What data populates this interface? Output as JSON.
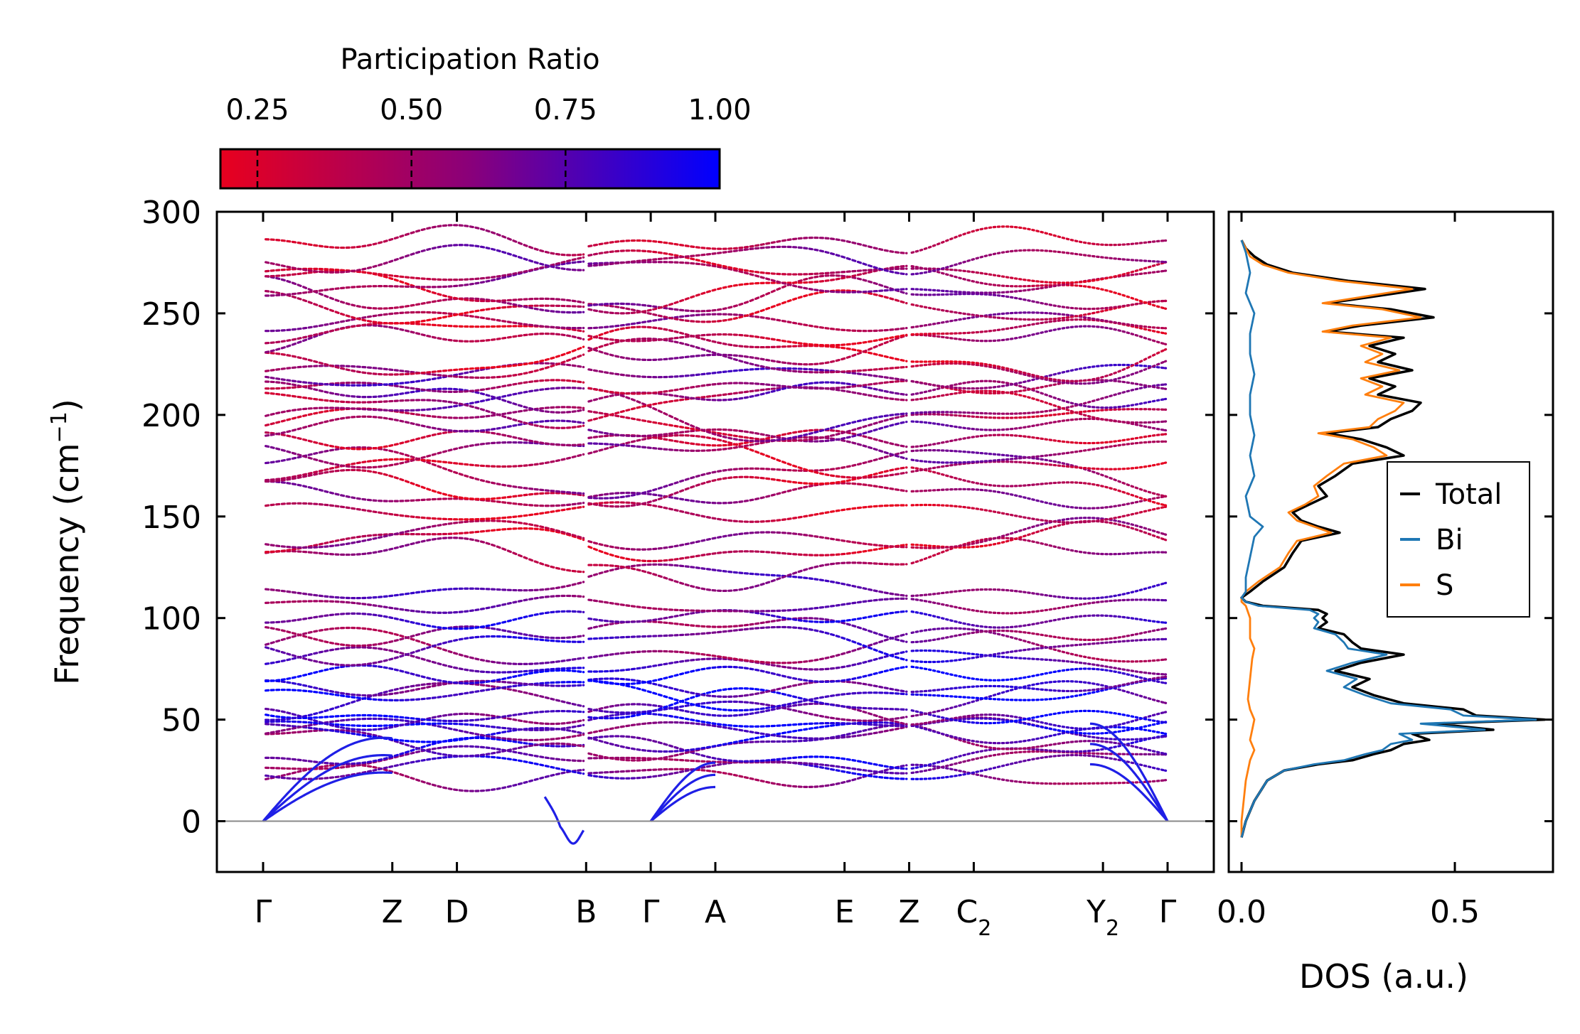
{
  "chart_data": [
    {
      "type": "line",
      "name": "phonon-band-structure",
      "ylabel": "Frequency (cm",
      "ylabel_sup": "−1",
      "ylabel_close": ")",
      "ylim": [
        -25,
        300
      ],
      "yticks": [
        0,
        50,
        100,
        150,
        200,
        250,
        300
      ],
      "zero_line": 0,
      "kpath_positions": [
        0,
        1,
        1.5,
        2.5,
        3.0,
        3.5,
        4.5,
        5.0,
        5.5,
        6.5,
        7.0
      ],
      "kpath_breaks": [
        2.5,
        5.0
      ],
      "kpath_labels": [
        {
          "label": "Γ",
          "sub": ""
        },
        {
          "label": "Z",
          "sub": ""
        },
        {
          "label": "D",
          "sub": ""
        },
        {
          "label": "B",
          "sub": ""
        },
        {
          "label": "Γ",
          "sub": ""
        },
        {
          "label": "A",
          "sub": ""
        },
        {
          "label": "E",
          "sub": ""
        },
        {
          "label": "Z",
          "sub": ""
        },
        {
          "label": "C",
          "sub": "2"
        },
        {
          "label": "Y",
          "sub": "2"
        },
        {
          "label": "Γ",
          "sub": ""
        }
      ],
      "colorbar": {
        "title": "Participation Ratio",
        "range": [
          0.19,
          1.0
        ],
        "ticks": [
          0.25,
          0.5,
          0.75,
          1.0
        ],
        "tick_labels": [
          "0.25",
          "0.50",
          "0.75",
          "1.00"
        ],
        "color_low": "#e8001e",
        "color_mid": "#8a007a",
        "color_high": "#0000ff"
      },
      "acoustic_color": "#1f1fe6",
      "acoustic_branches": [
        {
          "gamma1": 0,
          "mid": 48,
          "z": 56
        },
        {
          "gamma1": 0,
          "mid": 38,
          "z": 46
        },
        {
          "gamma1": 0,
          "mid": 28,
          "z": 40
        }
      ],
      "imaginary_dip": {
        "center_k": 2.4,
        "min": -11,
        "width": 0.12
      },
      "optical_bands_low": [
        22,
        26,
        30,
        34,
        38,
        42,
        45,
        48,
        52,
        55,
        58,
        62,
        66,
        72,
        78,
        84,
        88,
        94,
        100,
        106
      ],
      "optical_bands_high": [
        117,
        127,
        136,
        140,
        152,
        160,
        165,
        172,
        178,
        183,
        188,
        193,
        197,
        201,
        206,
        210,
        214,
        220,
        225,
        230,
        234,
        240,
        246,
        252,
        257,
        262,
        267,
        272,
        277,
        285
      ]
    },
    {
      "type": "line",
      "name": "phonon-dos",
      "xlabel": "DOS (a.u.)",
      "xlim": [
        -0.03,
        0.73
      ],
      "xticks": [
        0.0,
        0.5
      ],
      "xtick_labels": [
        "0.0",
        "0.5"
      ],
      "ylim": [
        -25,
        300
      ],
      "legend_position": "center-right",
      "series": [
        {
          "name": "Total",
          "color": "#000000",
          "freq": [
            -8,
            0,
            10,
            20,
            25,
            28,
            30,
            33,
            35,
            38,
            40,
            43,
            45,
            48,
            50,
            52,
            55,
            58,
            62,
            66,
            70,
            74,
            78,
            82,
            85,
            88,
            92,
            95,
            98,
            100,
            102,
            104,
            106,
            108,
            110,
            113,
            118,
            125,
            132,
            138,
            142,
            145,
            148,
            152,
            156,
            160,
            165,
            170,
            176,
            180,
            184,
            188,
            191,
            194,
            198,
            202,
            206,
            210,
            214,
            218,
            222,
            226,
            230,
            234,
            238,
            241,
            244,
            248,
            252,
            255,
            258,
            262,
            266,
            270,
            274,
            278,
            282,
            286
          ],
          "dos": [
            0.0,
            0.01,
            0.03,
            0.06,
            0.1,
            0.18,
            0.26,
            0.31,
            0.35,
            0.38,
            0.44,
            0.4,
            0.59,
            0.45,
            0.71,
            0.55,
            0.52,
            0.38,
            0.31,
            0.26,
            0.3,
            0.22,
            0.28,
            0.38,
            0.28,
            0.26,
            0.24,
            0.18,
            0.2,
            0.19,
            0.2,
            0.18,
            0.05,
            0.01,
            0.0,
            0.02,
            0.05,
            0.1,
            0.12,
            0.14,
            0.23,
            0.18,
            0.14,
            0.12,
            0.16,
            0.2,
            0.18,
            0.22,
            0.26,
            0.38,
            0.34,
            0.28,
            0.2,
            0.32,
            0.35,
            0.4,
            0.42,
            0.32,
            0.36,
            0.3,
            0.4,
            0.32,
            0.36,
            0.3,
            0.38,
            0.2,
            0.28,
            0.45,
            0.35,
            0.2,
            0.3,
            0.43,
            0.25,
            0.12,
            0.06,
            0.03,
            0.01,
            0.0
          ]
        },
        {
          "name": "Bi",
          "color": "#1f77b4",
          "freq": [
            -8,
            0,
            10,
            20,
            25,
            28,
            30,
            33,
            35,
            38,
            40,
            43,
            45,
            48,
            50,
            52,
            55,
            58,
            62,
            66,
            70,
            74,
            78,
            82,
            85,
            88,
            92,
            95,
            98,
            100,
            102,
            104,
            106,
            108,
            110,
            113,
            120,
            130,
            140,
            145,
            150,
            160,
            170,
            180,
            190,
            200,
            210,
            220,
            230,
            240,
            250,
            260,
            270,
            280,
            286
          ],
          "dos": [
            0.0,
            0.01,
            0.03,
            0.06,
            0.1,
            0.17,
            0.24,
            0.29,
            0.33,
            0.35,
            0.4,
            0.37,
            0.57,
            0.42,
            0.69,
            0.52,
            0.49,
            0.35,
            0.29,
            0.24,
            0.27,
            0.2,
            0.26,
            0.34,
            0.25,
            0.24,
            0.22,
            0.17,
            0.18,
            0.17,
            0.18,
            0.16,
            0.04,
            0.01,
            0.0,
            0.01,
            0.01,
            0.02,
            0.03,
            0.05,
            0.02,
            0.01,
            0.03,
            0.02,
            0.03,
            0.02,
            0.02,
            0.03,
            0.02,
            0.02,
            0.03,
            0.01,
            0.02,
            0.01,
            0.0
          ]
        },
        {
          "name": "S",
          "color": "#ff7f0e",
          "freq": [
            -8,
            0,
            10,
            20,
            30,
            35,
            40,
            45,
            50,
            55,
            60,
            70,
            80,
            85,
            90,
            100,
            106,
            108,
            110,
            113,
            118,
            125,
            132,
            138,
            142,
            145,
            148,
            152,
            156,
            160,
            165,
            170,
            176,
            180,
            184,
            188,
            191,
            194,
            198,
            202,
            206,
            210,
            214,
            218,
            222,
            226,
            230,
            234,
            238,
            241,
            244,
            248,
            252,
            255,
            258,
            262,
            266,
            270,
            274,
            278,
            282,
            286
          ],
          "dos": [
            0.0,
            0.0,
            0.005,
            0.01,
            0.02,
            0.03,
            0.02,
            0.025,
            0.03,
            0.02,
            0.015,
            0.02,
            0.025,
            0.03,
            0.02,
            0.02,
            0.01,
            0.0,
            0.0,
            0.01,
            0.04,
            0.09,
            0.11,
            0.13,
            0.21,
            0.17,
            0.13,
            0.11,
            0.15,
            0.18,
            0.17,
            0.2,
            0.24,
            0.34,
            0.31,
            0.26,
            0.18,
            0.3,
            0.32,
            0.36,
            0.38,
            0.29,
            0.33,
            0.28,
            0.37,
            0.29,
            0.33,
            0.28,
            0.35,
            0.19,
            0.26,
            0.42,
            0.33,
            0.19,
            0.28,
            0.4,
            0.23,
            0.11,
            0.05,
            0.02,
            0.01,
            0.0
          ]
        }
      ]
    }
  ]
}
